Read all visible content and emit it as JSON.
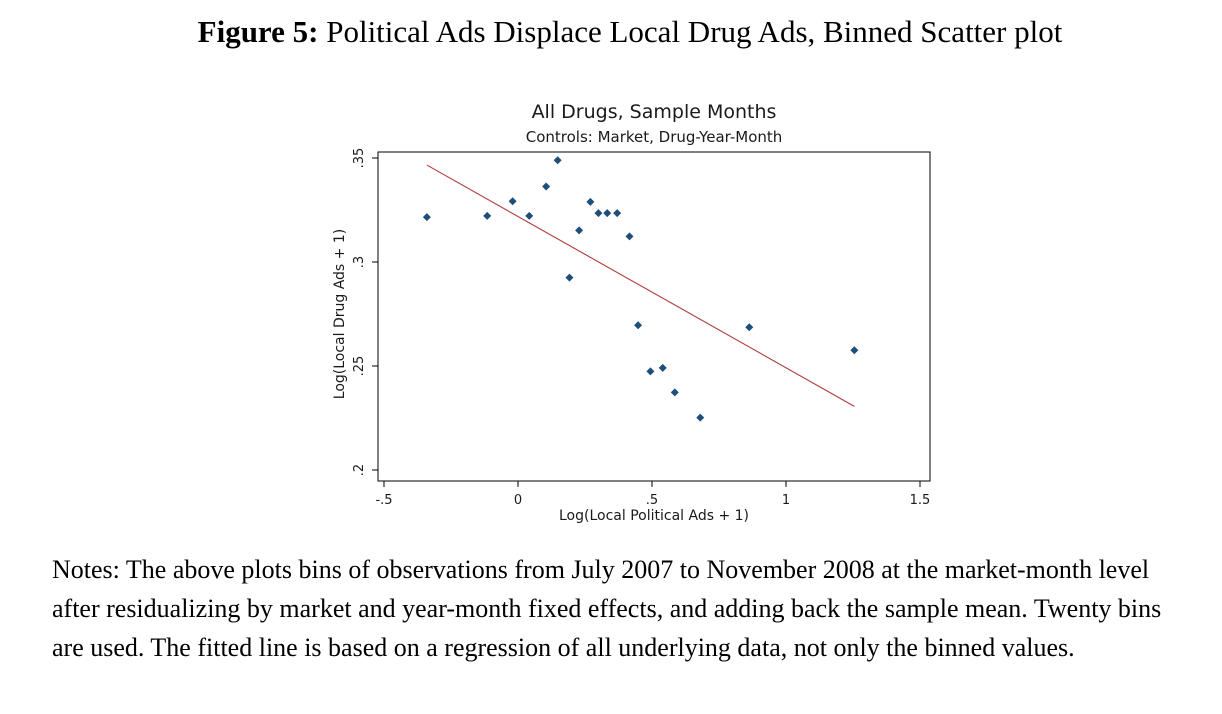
{
  "figure": {
    "label": "Figure 5:",
    "caption": "Political Ads Displace Local Drug Ads, Binned Scatter plot"
  },
  "notes": "Notes: The above plots bins of observations from July 2007 to November 2008 at the market-month level after residualizing by market and year-month fixed effects, and adding back the sample mean. Twenty bins are used. The fitted line is based on a regression of all underlying data, not only the binned values.",
  "chart_data": {
    "type": "scatter",
    "title": "All Drugs, Sample Months",
    "subtitle": "Controls: Market, Drug-Year-Month",
    "xlabel": "Log(Local Political Ads + 1)",
    "ylabel": "Log(Local Drug Ads + 1)",
    "xlim": [
      -0.5,
      1.5
    ],
    "ylim": [
      0.2,
      0.35
    ],
    "x_ticks": [
      -0.5,
      0,
      0.5,
      1,
      1.5
    ],
    "x_tick_labels": [
      "-.5",
      "0",
      ".5",
      "1",
      "1.5"
    ],
    "y_ticks": [
      0.2,
      0.25,
      0.3,
      0.35
    ],
    "y_tick_labels": [
      ".2",
      ".25",
      ".3",
      ".35"
    ],
    "grid": false,
    "marker_color": "#1f4e79",
    "fit_line_color": "#b03a3a",
    "points": [
      {
        "x": -0.34,
        "y": 0.3216
      },
      {
        "x": -0.115,
        "y": 0.3222
      },
      {
        "x": -0.02,
        "y": 0.3292
      },
      {
        "x": 0.042,
        "y": 0.3222
      },
      {
        "x": 0.105,
        "y": 0.3363
      },
      {
        "x": 0.148,
        "y": 0.3489
      },
      {
        "x": 0.192,
        "y": 0.2925
      },
      {
        "x": 0.228,
        "y": 0.3152
      },
      {
        "x": 0.27,
        "y": 0.3289
      },
      {
        "x": 0.3,
        "y": 0.3235
      },
      {
        "x": 0.333,
        "y": 0.3235
      },
      {
        "x": 0.37,
        "y": 0.3235
      },
      {
        "x": 0.416,
        "y": 0.3123
      },
      {
        "x": 0.448,
        "y": 0.2696
      },
      {
        "x": 0.494,
        "y": 0.2474
      },
      {
        "x": 0.54,
        "y": 0.2491
      },
      {
        "x": 0.585,
        "y": 0.2373
      },
      {
        "x": 0.68,
        "y": 0.2252
      },
      {
        "x": 0.863,
        "y": 0.2686
      },
      {
        "x": 1.255,
        "y": 0.2576
      }
    ],
    "fit_line": [
      {
        "x": -0.34,
        "y": 0.3466
      },
      {
        "x": 1.255,
        "y": 0.2306
      }
    ]
  }
}
